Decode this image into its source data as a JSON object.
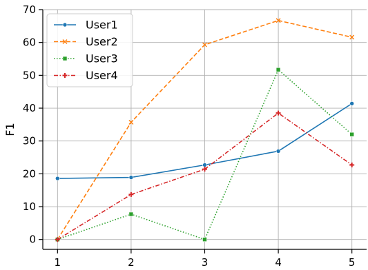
{
  "chart_data": {
    "type": "line",
    "xlabel": "",
    "ylabel": "F1",
    "x": [
      1,
      2,
      3,
      4,
      5
    ],
    "x_ticks": [
      "1",
      "2",
      "3",
      "4",
      "5"
    ],
    "ylim": [
      -3,
      70
    ],
    "y_ticks": [
      "0",
      "10",
      "20",
      "30",
      "40",
      "50",
      "60",
      "70"
    ],
    "grid": true,
    "legend_position": "top-left",
    "series": [
      {
        "name": "User1",
        "values": [
          18.6,
          18.9,
          22.7,
          26.9,
          41.4
        ],
        "color": "#1f77b4",
        "dash": "solid",
        "marker": "circle"
      },
      {
        "name": "User2",
        "values": [
          0.0,
          35.7,
          59.3,
          66.7,
          61.6
        ],
        "color": "#ff7f0e",
        "dash": "dashed",
        "marker": "x"
      },
      {
        "name": "User3",
        "values": [
          0.0,
          7.7,
          0.0,
          51.7,
          32.0
        ],
        "color": "#2ca02c",
        "dash": "dotted",
        "marker": "square"
      },
      {
        "name": "User4",
        "values": [
          0.0,
          13.7,
          21.4,
          38.5,
          22.7
        ],
        "color": "#d62728",
        "dash": "dashdot",
        "marker": "plus"
      }
    ]
  }
}
